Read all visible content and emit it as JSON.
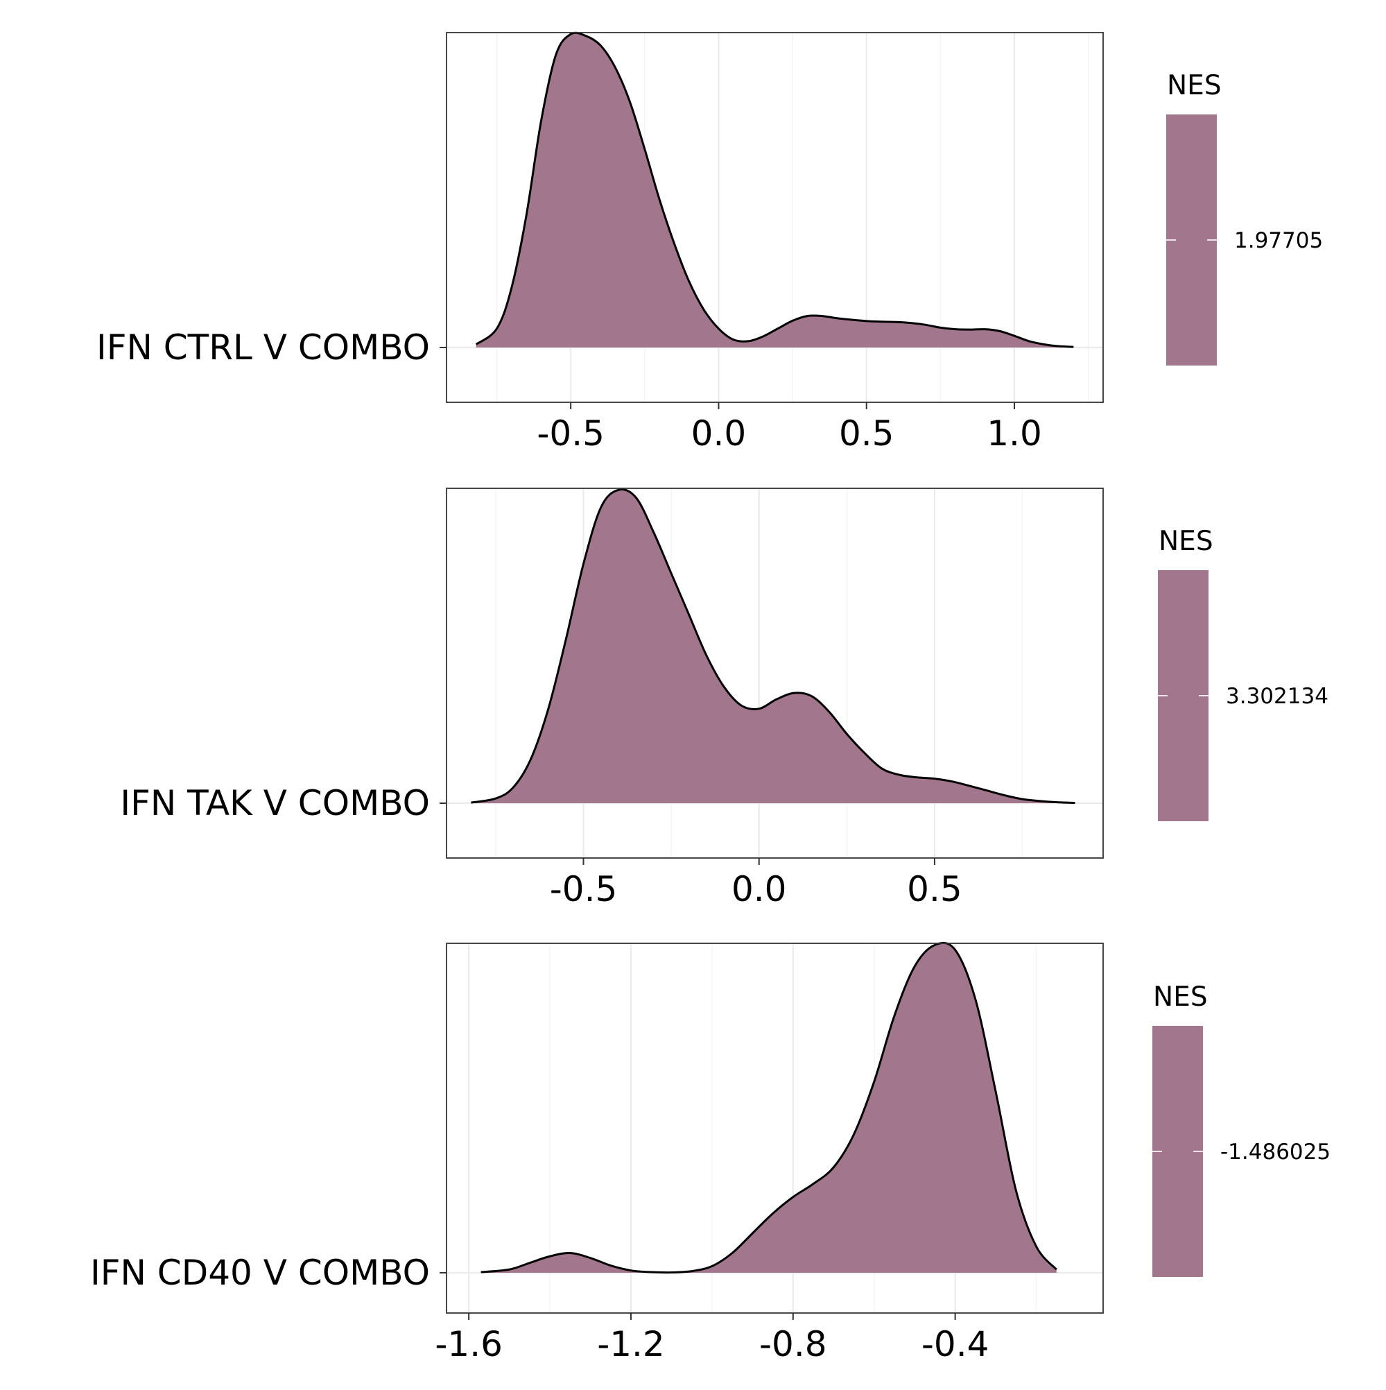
{
  "chart_data": [
    {
      "type": "area",
      "category": "IFN CTRL V COMBO",
      "legend_title": "NES",
      "legend_value": "1.97705",
      "fill_color": "#a2778e",
      "x_ticks": [
        "-0.5",
        "0.0",
        "0.5",
        "1.0"
      ],
      "xlim": [
        -0.92,
        1.3
      ],
      "grid": true,
      "series": [
        {
          "x": [
            -0.82,
            -0.75,
            -0.7,
            -0.65,
            -0.6,
            -0.55,
            -0.5,
            -0.45,
            -0.4,
            -0.35,
            -0.3,
            -0.25,
            -0.2,
            -0.15,
            -0.1,
            -0.05,
            0.0,
            0.05,
            0.1,
            0.15,
            0.2,
            0.25,
            0.3,
            0.35,
            0.4,
            0.45,
            0.5,
            0.55,
            0.6,
            0.65,
            0.7,
            0.75,
            0.8,
            0.85,
            0.9,
            0.95,
            1.0,
            1.05,
            1.1,
            1.15,
            1.2
          ],
          "density": [
            0.01,
            0.06,
            0.19,
            0.42,
            0.72,
            0.93,
            0.995,
            0.99,
            0.96,
            0.89,
            0.78,
            0.63,
            0.47,
            0.33,
            0.21,
            0.12,
            0.06,
            0.025,
            0.02,
            0.035,
            0.06,
            0.085,
            0.1,
            0.1,
            0.093,
            0.088,
            0.084,
            0.082,
            0.081,
            0.078,
            0.072,
            0.063,
            0.058,
            0.057,
            0.058,
            0.052,
            0.037,
            0.02,
            0.01,
            0.004,
            0.002
          ]
        }
      ]
    },
    {
      "type": "area",
      "category": "IFN TAK V COMBO",
      "legend_title": "NES",
      "legend_value": "3.302134",
      "fill_color": "#a2778e",
      "x_ticks": [
        "-0.5",
        "0.0",
        "0.5"
      ],
      "xlim": [
        -0.89,
        0.98
      ],
      "grid": true,
      "series": [
        {
          "x": [
            -0.82,
            -0.75,
            -0.7,
            -0.65,
            -0.6,
            -0.55,
            -0.5,
            -0.45,
            -0.4,
            -0.35,
            -0.3,
            -0.25,
            -0.2,
            -0.15,
            -0.1,
            -0.05,
            0.0,
            0.05,
            0.1,
            0.15,
            0.2,
            0.25,
            0.3,
            0.35,
            0.4,
            0.45,
            0.5,
            0.55,
            0.6,
            0.65,
            0.7,
            0.75,
            0.8,
            0.85,
            0.9
          ],
          "density": [
            0.002,
            0.015,
            0.05,
            0.14,
            0.3,
            0.52,
            0.76,
            0.94,
            0.995,
            0.97,
            0.86,
            0.73,
            0.6,
            0.47,
            0.37,
            0.31,
            0.3,
            0.33,
            0.35,
            0.34,
            0.29,
            0.22,
            0.16,
            0.11,
            0.09,
            0.082,
            0.078,
            0.069,
            0.055,
            0.04,
            0.025,
            0.013,
            0.007,
            0.003,
            0.001
          ]
        }
      ]
    },
    {
      "type": "area",
      "category": "IFN CD40 V COMBO",
      "legend_title": "NES",
      "legend_value": "-1.486025",
      "fill_color": "#a2778e",
      "x_ticks": [
        "-1.6",
        "-1.2",
        "-0.8",
        "-0.4"
      ],
      "xlim": [
        -1.655,
        -0.035
      ],
      "grid": true,
      "series": [
        {
          "x": [
            -1.57,
            -1.5,
            -1.45,
            -1.4,
            -1.35,
            -1.3,
            -1.25,
            -1.2,
            -1.15,
            -1.1,
            -1.05,
            -1.0,
            -0.95,
            -0.9,
            -0.85,
            -0.8,
            -0.75,
            -0.7,
            -0.65,
            -0.6,
            -0.55,
            -0.5,
            -0.45,
            -0.4,
            -0.35,
            -0.3,
            -0.25,
            -0.2,
            -0.15
          ],
          "density": [
            0.002,
            0.01,
            0.03,
            0.05,
            0.06,
            0.045,
            0.022,
            0.007,
            0.002,
            0.001,
            0.005,
            0.02,
            0.06,
            0.12,
            0.18,
            0.23,
            0.27,
            0.32,
            0.42,
            0.58,
            0.78,
            0.93,
            0.995,
            0.98,
            0.83,
            0.55,
            0.25,
            0.08,
            0.01
          ]
        }
      ]
    }
  ]
}
